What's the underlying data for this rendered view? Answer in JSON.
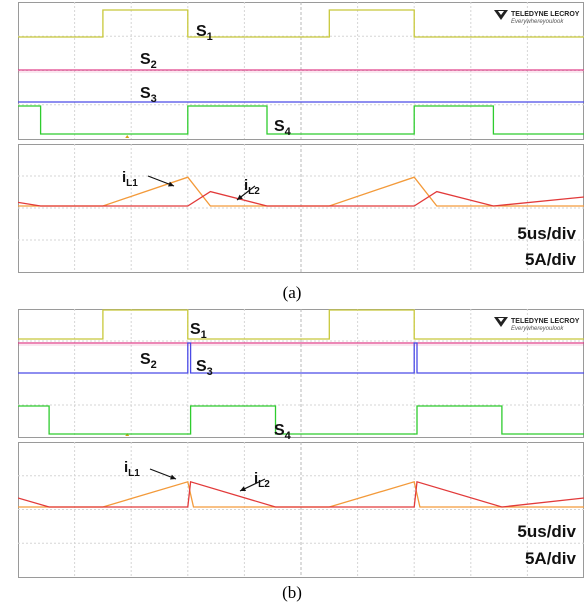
{
  "brand": {
    "name": "TELEDYNE LECROY",
    "tagline": "Everywhereyoulook"
  },
  "colors": {
    "s1": "#c8c83a",
    "s2": "#e0408a",
    "s3": "#4a4ae6",
    "s4": "#2ecc2e",
    "iL1": "#f39a3a",
    "iL2": "#e23a3a"
  },
  "chart_data": [
    {
      "type": "line",
      "caption": "(a)",
      "scale": {
        "time": "5us/div",
        "current": "5A/div"
      },
      "labels": {
        "s1": "S1",
        "s2": "S2",
        "s3": "S3",
        "s4": "S4",
        "iL1": "iL1",
        "iL2": "iL2"
      },
      "x_divisions": 10,
      "series": [
        {
          "name": "S1",
          "x": [
            0,
            1.5,
            1.5,
            3.0,
            3.0,
            5.5,
            5.5,
            7.0,
            7.0,
            10
          ],
          "y": [
            0,
            0,
            1,
            1,
            0,
            0,
            1,
            1,
            0,
            0
          ]
        },
        {
          "name": "S2",
          "x": [
            0,
            10
          ],
          "y": [
            0,
            0
          ]
        },
        {
          "name": "S3",
          "x": [
            0,
            10
          ],
          "y": [
            0,
            0
          ]
        },
        {
          "name": "S4",
          "x": [
            0,
            0.4,
            0.4,
            3.0,
            3.0,
            4.4,
            4.4,
            7.0,
            7.0,
            8.4,
            8.4,
            10
          ],
          "y": [
            1,
            1,
            0,
            0,
            1,
            1,
            0,
            0,
            1,
            1,
            0,
            0
          ]
        },
        {
          "name": "iL1",
          "x": [
            0,
            1.5,
            3.0,
            3.4,
            5.5,
            7.0,
            7.4,
            10
          ],
          "y": [
            0,
            0,
            3.2,
            0,
            0,
            3.2,
            0,
            0
          ]
        },
        {
          "name": "iL2",
          "x": [
            0,
            0.4,
            3.0,
            3.4,
            4.4,
            7.0,
            7.4,
            8.4,
            10
          ],
          "y": [
            0.4,
            0,
            0,
            1.6,
            0,
            0,
            1.6,
            0,
            1.0
          ]
        }
      ]
    },
    {
      "type": "line",
      "caption": "(b)",
      "scale": {
        "time": "5us/div",
        "current": "5A/div"
      },
      "labels": {
        "s1": "S1",
        "s2": "S2",
        "s3": "S3",
        "s4": "S4",
        "iL1": "iL1",
        "iL2": "iL2"
      },
      "x_divisions": 10,
      "series": [
        {
          "name": "S1",
          "x": [
            0,
            1.5,
            1.5,
            3.0,
            3.0,
            5.5,
            5.5,
            7.0,
            7.0,
            10
          ],
          "y": [
            0,
            0,
            1,
            1,
            0,
            0,
            1,
            1,
            0,
            0
          ]
        },
        {
          "name": "S2",
          "x": [
            0,
            10
          ],
          "y": [
            0,
            0
          ]
        },
        {
          "name": "S3",
          "x": [
            0,
            3.0,
            3.0,
            3.05,
            3.05,
            7.0,
            7.0,
            7.05,
            7.05,
            10
          ],
          "y": [
            0,
            0,
            1,
            1,
            0,
            0,
            1,
            1,
            0,
            0
          ]
        },
        {
          "name": "S4",
          "x": [
            0,
            0.55,
            0.55,
            3.05,
            3.05,
            4.55,
            4.55,
            7.05,
            7.05,
            8.55,
            8.55,
            10
          ],
          "y": [
            1,
            1,
            0,
            0,
            1,
            1,
            0,
            0,
            1,
            1,
            0,
            0
          ]
        },
        {
          "name": "iL1",
          "x": [
            0,
            1.5,
            3.0,
            3.1,
            5.5,
            7.0,
            7.1,
            10
          ],
          "y": [
            0,
            0,
            2.8,
            0,
            0,
            2.8,
            0,
            0
          ]
        },
        {
          "name": "iL2",
          "x": [
            0,
            0.55,
            3.0,
            3.05,
            4.55,
            7.0,
            7.05,
            8.55,
            10
          ],
          "y": [
            1.0,
            0,
            0,
            2.8,
            0,
            0,
            2.8,
            0,
            1.0
          ]
        }
      ]
    }
  ]
}
